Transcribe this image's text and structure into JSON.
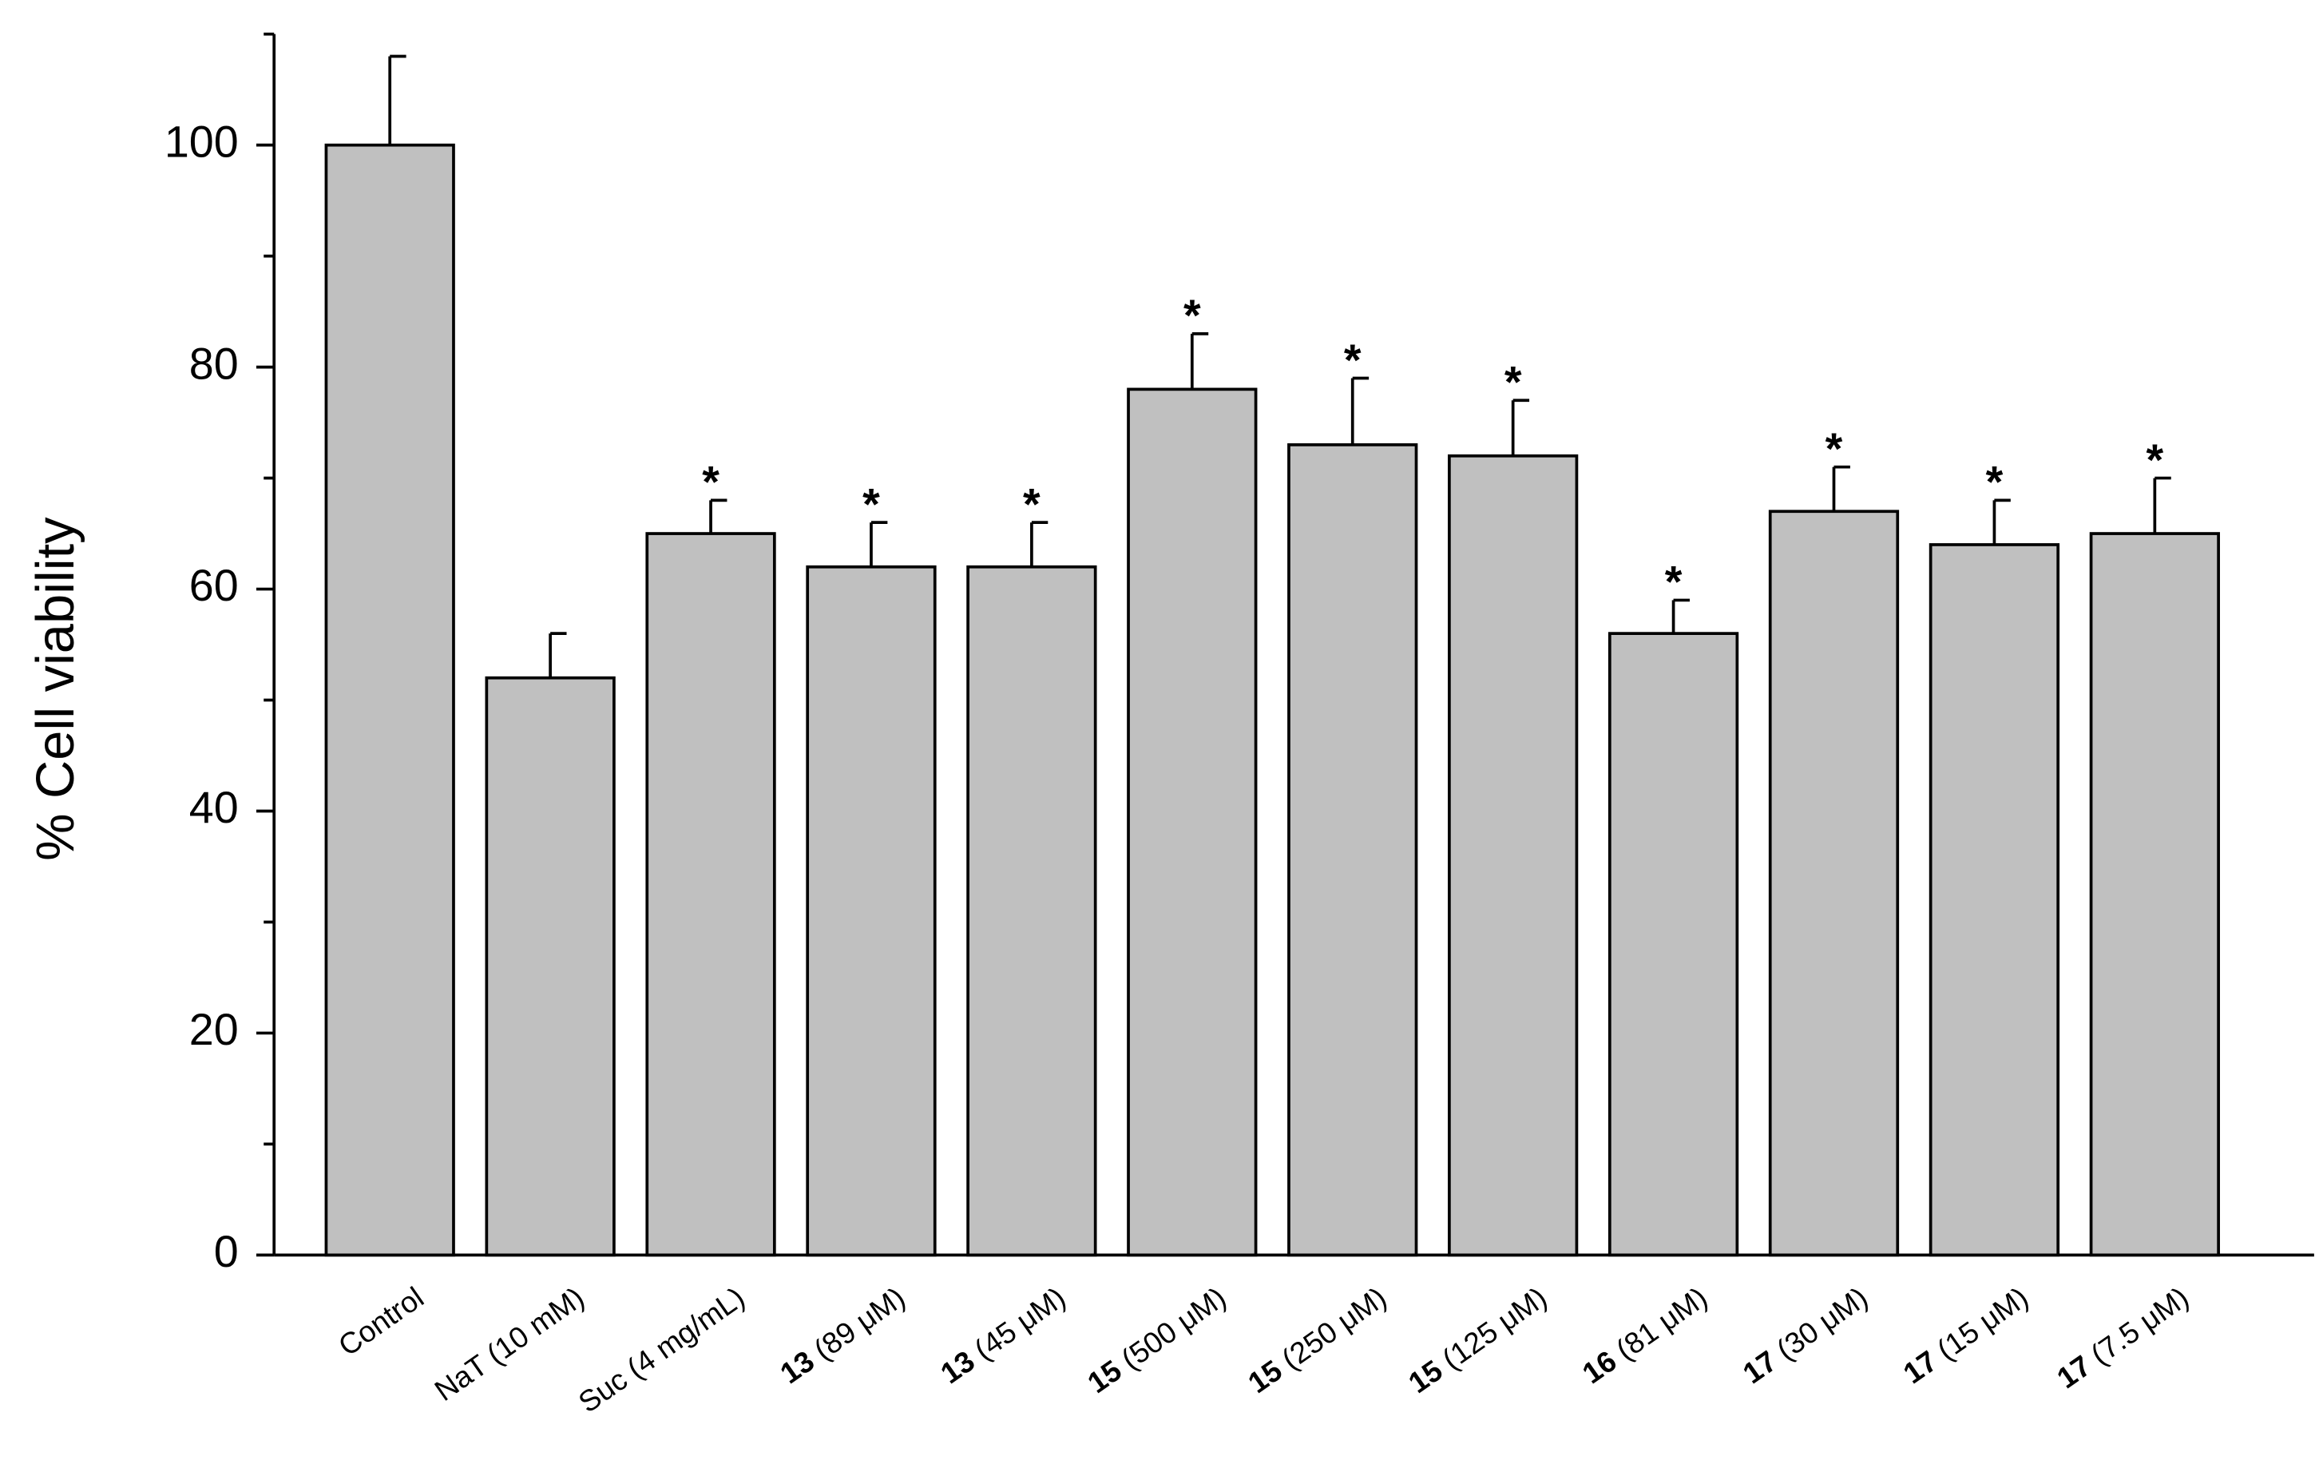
{
  "chart_data": {
    "type": "bar",
    "y_label": "% Cell viability",
    "categories": [
      [
        "Control"
      ],
      [
        "NaT (10 mM)"
      ],
      [
        "Suc (4 mg/mL)"
      ],
      [
        "13",
        " (89 μM)"
      ],
      [
        "13",
        " (45 μM)"
      ],
      [
        "15",
        " (500 μM)"
      ],
      [
        "15",
        " (250 μM)"
      ],
      [
        "15",
        " (125 μM)"
      ],
      [
        "16",
        " (81 μM)"
      ],
      [
        "17",
        " (30 μM)"
      ],
      [
        "17",
        " (15 μM)"
      ],
      [
        "17",
        " (7.5 μM)"
      ]
    ],
    "values": [
      100,
      52,
      65,
      62,
      62,
      78,
      73,
      72,
      56,
      67,
      64,
      65
    ],
    "errors": [
      8,
      4,
      3,
      4,
      4,
      5,
      6,
      5,
      3,
      4,
      4,
      5
    ],
    "significance": [
      null,
      null,
      "*",
      "*",
      "*",
      "*",
      "*",
      "*",
      "*",
      "*",
      "*",
      "*"
    ],
    "color": "#c0c0c0",
    "ylim": [
      0,
      110
    ],
    "yticks": [
      0,
      20,
      40,
      60,
      80,
      100
    ],
    "yminor": [
      10,
      30,
      50,
      70,
      90,
      110
    ]
  }
}
